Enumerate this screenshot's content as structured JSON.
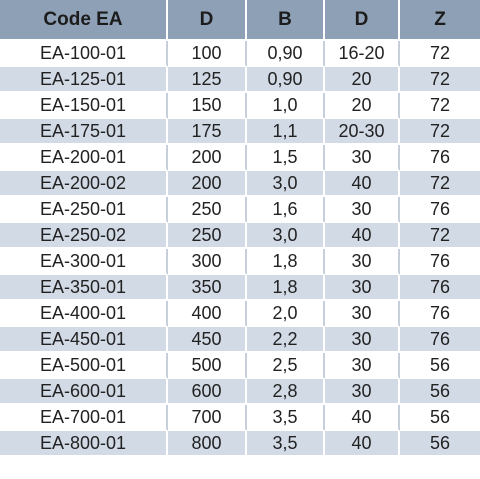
{
  "table": {
    "headers": [
      "Code EA",
      "D",
      "B",
      "D",
      "Z"
    ],
    "rows": [
      [
        "EA-100-01",
        "100",
        "0,90",
        "16-20",
        "72"
      ],
      [
        "EA-125-01",
        "125",
        "0,90",
        "20",
        "72"
      ],
      [
        "EA-150-01",
        "150",
        "1,0",
        "20",
        "72"
      ],
      [
        "EA-175-01",
        "175",
        "1,1",
        "20-30",
        "72"
      ],
      [
        "EA-200-01",
        "200",
        "1,5",
        "30",
        "76"
      ],
      [
        "EA-200-02",
        "200",
        "3,0",
        "40",
        "72"
      ],
      [
        "EA-250-01",
        "250",
        "1,6",
        "30",
        "76"
      ],
      [
        "EA-250-02",
        "250",
        "3,0",
        "40",
        "72"
      ],
      [
        "EA-300-01",
        "300",
        "1,8",
        "30",
        "76"
      ],
      [
        "EA-350-01",
        "350",
        "1,8",
        "30",
        "76"
      ],
      [
        "EA-400-01",
        "400",
        "2,0",
        "30",
        "76"
      ],
      [
        "EA-450-01",
        "450",
        "2,2",
        "30",
        "76"
      ],
      [
        "EA-500-01",
        "500",
        "2,5",
        "30",
        "56"
      ],
      [
        "EA-600-01",
        "600",
        "2,8",
        "30",
        "56"
      ],
      [
        "EA-700-01",
        "700",
        "3,5",
        "40",
        "56"
      ],
      [
        "EA-800-01",
        "800",
        "3,5",
        "40",
        "56"
      ]
    ]
  },
  "colors": {
    "header_bg": "#8ea0b6",
    "row_alt_bg": "#d2dae6",
    "row_bg": "#ffffff"
  }
}
